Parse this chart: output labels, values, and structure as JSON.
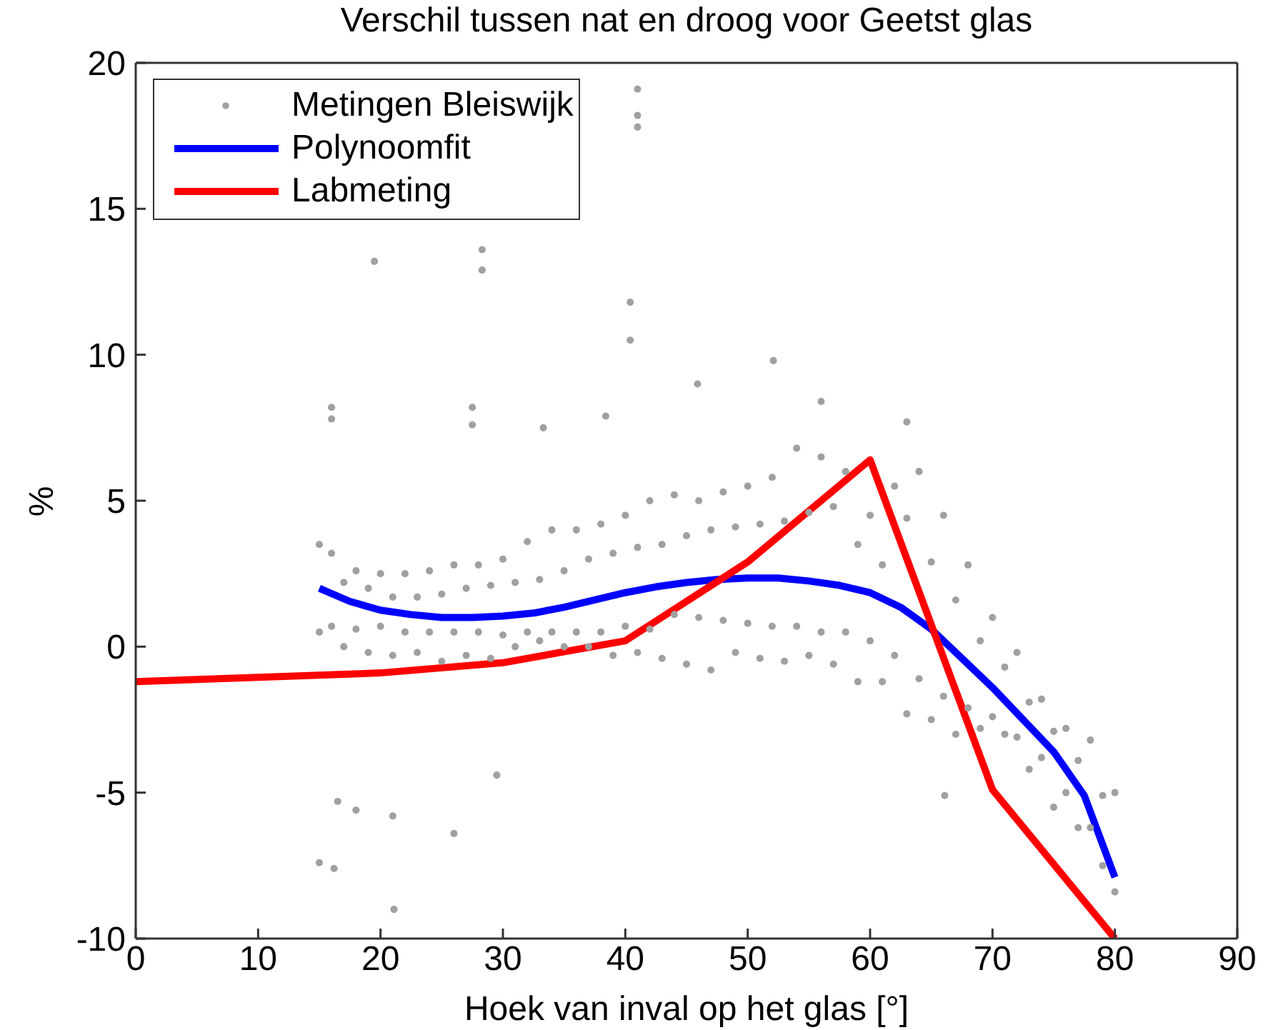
{
  "chart_data": {
    "type": "line",
    "title": "Verschil tussen nat en droog voor Geetst glas",
    "xlabel": "Hoek van inval op het glas [°]",
    "ylabel": "%",
    "xlim": [
      0,
      90
    ],
    "xticks": [
      0,
      10,
      20,
      30,
      40,
      50,
      60,
      70,
      80,
      90
    ],
    "ylim": [
      -10,
      20
    ],
    "yticks": [
      -10,
      -5,
      0,
      5,
      10,
      15,
      20
    ],
    "legend": "top left",
    "series": [
      {
        "name": "Metingen Bleiswijk",
        "type": "scatter",
        "marker": "circle",
        "color": "#a0a0a0",
        "x": [
          15,
          15,
          16,
          16,
          17,
          17,
          18,
          18,
          19,
          19,
          20,
          20,
          21,
          21,
          22,
          22,
          23,
          23,
          24,
          24,
          25,
          25,
          26,
          26,
          27,
          27,
          28,
          28,
          29,
          29,
          30,
          30,
          31,
          31,
          32,
          32,
          33,
          33,
          34,
          34,
          35,
          35,
          36,
          36,
          37,
          37,
          38,
          38,
          39,
          39,
          40,
          40,
          41,
          41,
          42,
          42,
          43,
          43,
          44,
          44,
          45,
          45,
          46,
          46,
          47,
          47,
          48,
          48,
          49,
          49,
          50,
          50,
          51,
          51,
          52,
          52,
          53,
          53,
          54,
          54,
          55,
          55,
          56,
          56,
          57,
          57,
          58,
          58,
          59,
          59,
          60,
          60,
          61,
          61,
          62,
          62,
          63,
          63,
          64,
          64,
          65,
          65,
          66,
          66,
          67,
          67,
          68,
          68,
          69,
          69,
          70,
          70,
          71,
          71,
          72,
          72,
          73,
          73,
          74,
          74,
          75,
          75,
          76,
          76,
          77,
          77,
          78,
          78,
          79,
          79,
          80,
          80,
          41,
          41,
          41,
          19.5,
          28.3,
          28.3,
          40.4,
          40.4,
          16,
          16,
          27.5,
          27.5,
          38.4,
          33.3,
          45.9,
          52.1,
          56,
          63,
          15,
          16.2,
          21.1,
          16.5,
          21,
          26,
          29.5,
          18,
          66.1
        ],
        "values": [
          3.5,
          0.5,
          3.2,
          0.7,
          2.2,
          0.0,
          2.6,
          0.6,
          2.0,
          -0.2,
          2.5,
          0.7,
          1.7,
          -0.3,
          2.5,
          0.5,
          1.7,
          -0.2,
          2.6,
          0.5,
          1.8,
          -0.5,
          2.8,
          0.5,
          2.0,
          -0.3,
          2.8,
          0.5,
          2.1,
          -0.4,
          3.0,
          0.4,
          2.2,
          0.0,
          3.6,
          0.5,
          2.3,
          0.2,
          4.0,
          0.5,
          2.6,
          0.0,
          4.0,
          0.5,
          3.0,
          0.0,
          4.2,
          0.5,
          3.2,
          -0.3,
          4.5,
          0.7,
          3.4,
          -0.2,
          5.0,
          0.6,
          3.5,
          -0.4,
          5.2,
          1.1,
          3.8,
          -0.6,
          5.0,
          1.0,
          4.0,
          -0.8,
          5.3,
          0.9,
          4.1,
          -0.2,
          5.5,
          0.8,
          4.2,
          -0.4,
          5.8,
          0.7,
          4.3,
          -0.5,
          6.8,
          0.7,
          4.6,
          -0.3,
          6.5,
          0.5,
          4.8,
          -0.6,
          6.0,
          0.5,
          3.5,
          -1.2,
          4.5,
          0.2,
          2.8,
          -1.2,
          5.5,
          -0.3,
          4.4,
          -2.3,
          6.0,
          -1.1,
          2.9,
          -2.5,
          4.5,
          -1.7,
          1.6,
          -3.0,
          2.8,
          -2.1,
          0.2,
          -2.8,
          1.0,
          -2.4,
          -0.7,
          -3.0,
          -0.2,
          -3.1,
          -1.9,
          -4.2,
          -1.8,
          -3.8,
          -2.9,
          -5.5,
          -2.8,
          -5.0,
          -3.9,
          -6.2,
          -3.2,
          -6.2,
          -5.1,
          -7.5,
          -5.0,
          -8.4,
          19.1,
          18.2,
          17.8,
          13.2,
          13.6,
          12.9,
          11.8,
          10.5,
          8.2,
          7.8,
          8.2,
          7.6,
          7.9,
          7.5,
          9.0,
          9.8,
          8.4,
          7.7,
          -7.4,
          -7.6,
          -9.0,
          -5.3,
          -5.8,
          -6.4,
          -4.4,
          -5.6,
          -5.1
        ]
      },
      {
        "name": "Polynoomfit",
        "color": "#0000ff",
        "x": [
          15,
          17.5,
          20,
          22.5,
          25,
          27.5,
          30,
          32.5,
          35,
          37.5,
          40,
          42.5,
          45,
          47.5,
          50,
          52.5,
          55,
          57.5,
          60,
          62.5,
          65,
          67.5,
          70,
          72.5,
          75,
          77.5,
          80
        ],
        "values": [
          2.0,
          1.55,
          1.25,
          1.1,
          1.0,
          1.0,
          1.05,
          1.15,
          1.35,
          1.6,
          1.85,
          2.05,
          2.2,
          2.3,
          2.35,
          2.35,
          2.25,
          2.1,
          1.85,
          1.35,
          0.6,
          -0.4,
          -1.4,
          -2.5,
          -3.6,
          -5.1,
          -7.9
        ]
      },
      {
        "name": "Labmeting",
        "color": "#ff0000",
        "x": [
          0,
          10,
          20,
          30,
          40,
          50,
          60,
          70,
          80
        ],
        "values": [
          -1.2,
          -1.05,
          -0.9,
          -0.55,
          0.2,
          2.9,
          6.4,
          -4.9,
          -10
        ]
      }
    ]
  }
}
